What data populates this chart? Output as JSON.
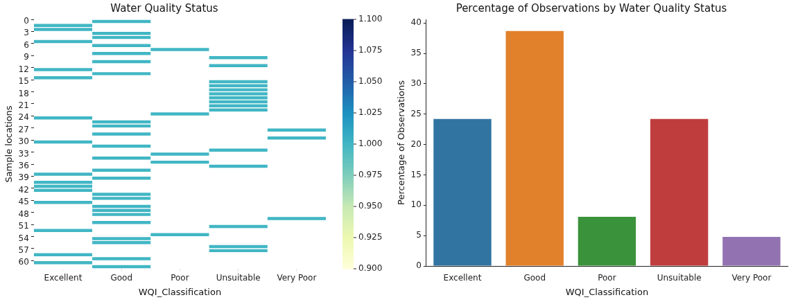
{
  "chart_data": [
    {
      "type": "heatmap",
      "title": "Water Quality Status",
      "xlabel": "WQI_Classification",
      "ylabel": "Sample locations",
      "categories": [
        "Excellent",
        "Good",
        "Poor",
        "Unsuitable",
        "Very Poor"
      ],
      "y_categories": [
        "0",
        null,
        null,
        "3",
        null,
        null,
        "6",
        null,
        null,
        "9",
        null,
        null,
        "12",
        null,
        null,
        "15",
        null,
        null,
        "18",
        null,
        null,
        "21",
        null,
        null,
        "24",
        null,
        null,
        "27",
        null,
        null,
        "30",
        null,
        null,
        "33",
        null,
        null,
        "36",
        null,
        null,
        "39",
        null,
        null,
        "42",
        null,
        null,
        "45",
        null,
        null,
        "48",
        null,
        null,
        "51",
        null,
        null,
        "54",
        null,
        null,
        "57",
        null,
        null,
        "60",
        null
      ],
      "cells": [
        [
          null,
          1,
          null,
          null,
          null
        ],
        [
          1,
          null,
          null,
          null,
          null
        ],
        [
          1,
          null,
          null,
          null,
          null
        ],
        [
          null,
          1,
          null,
          null,
          null
        ],
        [
          null,
          1,
          null,
          null,
          null
        ],
        [
          1,
          null,
          null,
          null,
          null
        ],
        [
          null,
          1,
          null,
          null,
          null
        ],
        [
          null,
          null,
          1,
          null,
          null
        ],
        [
          null,
          1,
          null,
          null,
          null
        ],
        [
          null,
          null,
          null,
          1,
          null
        ],
        [
          null,
          1,
          null,
          null,
          null
        ],
        [
          null,
          null,
          null,
          1,
          null
        ],
        [
          1,
          null,
          null,
          null,
          null
        ],
        [
          null,
          1,
          null,
          null,
          null
        ],
        [
          1,
          null,
          null,
          null,
          null
        ],
        [
          null,
          null,
          null,
          1,
          null
        ],
        [
          null,
          null,
          null,
          1,
          null
        ],
        [
          null,
          null,
          null,
          1,
          null
        ],
        [
          null,
          null,
          null,
          1,
          null
        ],
        [
          null,
          null,
          null,
          1,
          null
        ],
        [
          null,
          null,
          null,
          1,
          null
        ],
        [
          null,
          null,
          null,
          1,
          null
        ],
        [
          null,
          null,
          null,
          1,
          null
        ],
        [
          null,
          null,
          1,
          null,
          null
        ],
        [
          1,
          null,
          null,
          null,
          null
        ],
        [
          null,
          1,
          null,
          null,
          null
        ],
        [
          null,
          1,
          null,
          null,
          null
        ],
        [
          null,
          null,
          null,
          null,
          1
        ],
        [
          null,
          1,
          null,
          null,
          null
        ],
        [
          null,
          null,
          null,
          null,
          1
        ],
        [
          1,
          null,
          null,
          null,
          null
        ],
        [
          null,
          1,
          null,
          null,
          null
        ],
        [
          null,
          null,
          null,
          1,
          null
        ],
        [
          null,
          null,
          1,
          null,
          null
        ],
        [
          null,
          1,
          null,
          null,
          null
        ],
        [
          null,
          null,
          1,
          null,
          null
        ],
        [
          null,
          null,
          null,
          1,
          null
        ],
        [
          null,
          1,
          null,
          null,
          null
        ],
        [
          1,
          null,
          null,
          null,
          null
        ],
        [
          null,
          1,
          null,
          null,
          null
        ],
        [
          1,
          null,
          null,
          null,
          null
        ],
        [
          1,
          null,
          null,
          null,
          null
        ],
        [
          1,
          null,
          null,
          null,
          null
        ],
        [
          null,
          1,
          null,
          null,
          null
        ],
        [
          null,
          1,
          null,
          null,
          null
        ],
        [
          1,
          null,
          null,
          null,
          null
        ],
        [
          null,
          1,
          null,
          null,
          null
        ],
        [
          null,
          1,
          null,
          null,
          null
        ],
        [
          null,
          1,
          null,
          null,
          null
        ],
        [
          null,
          null,
          null,
          null,
          1
        ],
        [
          null,
          1,
          null,
          null,
          null
        ],
        [
          null,
          null,
          null,
          1,
          null
        ],
        [
          1,
          null,
          null,
          null,
          null
        ],
        [
          null,
          null,
          1,
          null,
          null
        ],
        [
          null,
          1,
          null,
          null,
          null
        ],
        [
          null,
          1,
          null,
          null,
          null
        ],
        [
          null,
          null,
          null,
          1,
          null
        ],
        [
          null,
          null,
          null,
          1,
          null
        ],
        [
          1,
          null,
          null,
          null,
          null
        ],
        [
          null,
          1,
          null,
          null,
          null
        ],
        [
          1,
          null,
          null,
          null,
          null
        ],
        [
          null,
          1,
          null,
          null,
          null
        ]
      ],
      "clim": [
        0.9,
        1.1
      ],
      "cticks": [
        {
          "value": 0.9,
          "label": "0.900"
        },
        {
          "value": 0.925,
          "label": "0.925"
        },
        {
          "value": 0.95,
          "label": "0.950"
        },
        {
          "value": 0.975,
          "label": "0.975"
        },
        {
          "value": 1.0,
          "label": "1.000"
        },
        {
          "value": 1.025,
          "label": "1.025"
        },
        {
          "value": 1.05,
          "label": "1.050"
        },
        {
          "value": 1.075,
          "label": "1.075"
        },
        {
          "value": 1.1,
          "label": "1.100"
        }
      ]
    },
    {
      "type": "bar",
      "title": "Percentage of Observations by Water Quality Status",
      "xlabel": "WQI_Classification",
      "ylabel": "Percentage of Observations",
      "categories": [
        "Excellent",
        "Good",
        "Poor",
        "Unsuitable",
        "Very Poor"
      ],
      "values": [
        24.2,
        38.7,
        8.1,
        24.2,
        4.8
      ],
      "colors": [
        "#3274a1",
        "#e1812c",
        "#3a923a",
        "#c03d3e",
        "#9372b2"
      ],
      "ylim": [
        0,
        40.6
      ],
      "yticks": [
        0,
        5,
        10,
        15,
        20,
        25,
        30,
        35,
        40
      ]
    }
  ]
}
